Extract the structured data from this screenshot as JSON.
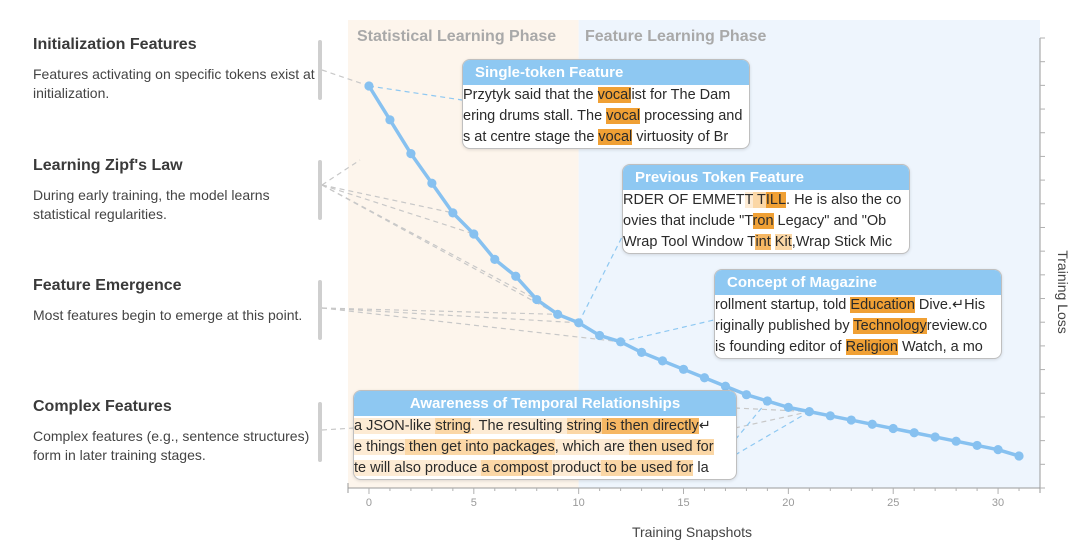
{
  "sections": [
    {
      "title": "Initialization Features",
      "desc": "Features activating on specific tokens exist at initialization."
    },
    {
      "title": "Learning Zipf's Law",
      "desc": "During early training, the model learns statistical regularities."
    },
    {
      "title": "Feature Emergence",
      "desc": "Most features begin to emerge at this point."
    },
    {
      "title": "Complex Features",
      "desc": "Complex features (e.g., sentence structures) form in later training stages."
    }
  ],
  "phases": {
    "statistical": "Statistical Learning Phase",
    "feature": "Feature Learning Phase"
  },
  "colors": {
    "statistical_bg": "#fdf5ec",
    "feature_bg": "#eef5fd",
    "line": "#87c1f0",
    "header": "#8ec8f2",
    "highlight_strong": "#f0a034",
    "highlight_light": "#fbd7a6"
  },
  "cards": [
    {
      "title": "Single-token Feature",
      "lines": [
        [
          [
            "Przytyk said that the ",
            0
          ],
          [
            "vocal",
            4
          ],
          [
            "ist for The Dam",
            0
          ]
        ],
        [
          [
            "ering drums stall. The ",
            0
          ],
          [
            "vocal",
            4
          ],
          [
            " processing and",
            0
          ]
        ],
        [
          [
            "s at centre stage the ",
            0
          ],
          [
            "vocal",
            4
          ],
          [
            " virtuosity of Br",
            0
          ]
        ]
      ]
    },
    {
      "title": "Previous Token Feature",
      "lines": [
        [
          [
            "RDER OF EMMET",
            0
          ],
          [
            "T",
            1
          ],
          [
            " T",
            2
          ],
          [
            "ILL",
            4
          ],
          [
            ". He is also the co",
            0
          ]
        ],
        [
          [
            "ovies that include \"T",
            0
          ],
          [
            "ron",
            4
          ],
          [
            " Legacy\" and \"Ob",
            0
          ]
        ],
        [
          [
            "Wrap Tool Window T",
            0
          ],
          [
            "int",
            3
          ],
          [
            " ",
            0
          ],
          [
            "Kit",
            2
          ],
          [
            ",Wrap Stick Mic",
            0
          ]
        ]
      ]
    },
    {
      "title": "Concept of Magazine",
      "lines": [
        [
          [
            "rollment startup, told ",
            0
          ],
          [
            "Education",
            4
          ],
          [
            " Dive.↵His",
            0
          ]
        ],
        [
          [
            "riginally published by ",
            0
          ],
          [
            "Technology",
            4
          ],
          [
            "review.co",
            0
          ]
        ],
        [
          [
            " is founding editor of ",
            0
          ],
          [
            "Religion",
            4
          ],
          [
            " Watch, a mo",
            0
          ]
        ]
      ]
    },
    {
      "title": "Awareness of Temporal Relationships",
      "lines": [
        [
          [
            " a JSON-like ",
            1
          ],
          [
            "string",
            2
          ],
          [
            ". The resulting ",
            1
          ],
          [
            "string",
            2
          ],
          [
            " is then directly",
            3
          ],
          [
            "↵",
            0
          ]
        ],
        [
          [
            "e things",
            1
          ],
          [
            " then get into packages",
            2
          ],
          [
            ", which are ",
            1
          ],
          [
            "then used for",
            2
          ]
        ],
        [
          [
            "te will also produce ",
            1
          ],
          [
            "a compost ",
            2
          ],
          [
            "product",
            1
          ],
          [
            " to be used for",
            2
          ],
          [
            " la",
            0
          ]
        ]
      ]
    }
  ],
  "chart_data": {
    "type": "line",
    "title": "",
    "xlabel": "Training Snapshots",
    "ylabel": "Training Loss",
    "xlim": [
      -1,
      32
    ],
    "ylim": [
      0,
      1
    ],
    "x_ticks": [
      0,
      5,
      10,
      15,
      20,
      25,
      30
    ],
    "phases": [
      {
        "name": "Statistical Learning Phase",
        "x_range": [
          -1,
          10
        ]
      },
      {
        "name": "Feature Learning Phase",
        "x_range": [
          10,
          32
        ]
      }
    ],
    "series": [
      {
        "x": [
          0,
          1,
          2,
          3,
          4,
          5,
          6,
          7,
          8,
          9,
          10,
          11,
          12,
          13,
          14,
          15,
          16,
          17,
          18,
          19,
          20,
          21,
          22,
          23,
          24,
          25,
          26,
          27,
          28,
          29,
          30,
          31
        ],
        "y": [
          0.84,
          0.76,
          0.68,
          0.61,
          0.54,
          0.49,
          0.43,
          0.39,
          0.335,
          0.3,
          0.28,
          0.25,
          0.235,
          0.21,
          0.19,
          0.17,
          0.15,
          0.13,
          0.11,
          0.095,
          0.08,
          0.07,
          0.06,
          0.05,
          0.04,
          0.03,
          0.02,
          0.01,
          0.0,
          -0.01,
          -0.02,
          -0.035
        ]
      }
    ],
    "grid": false
  }
}
